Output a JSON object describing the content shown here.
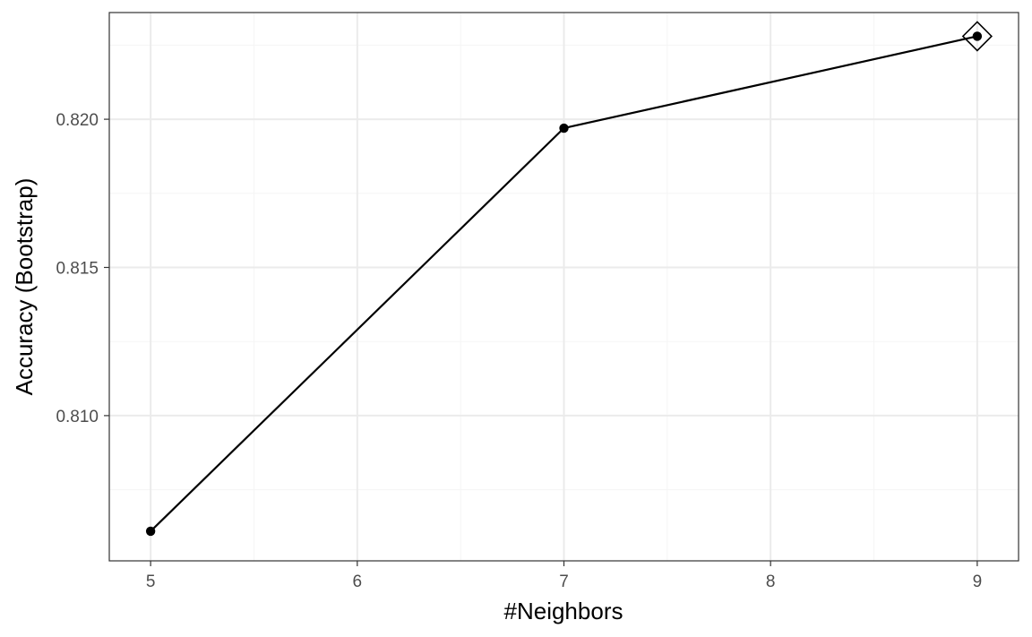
{
  "chart_data": {
    "type": "line",
    "title": "",
    "xlabel": "#Neighbors",
    "ylabel": "Accuracy (Bootstrap)",
    "x": [
      5,
      7,
      9
    ],
    "y": [
      0.8061,
      0.8197,
      0.8228
    ],
    "xlim": [
      4.8,
      9.2
    ],
    "ylim": [
      0.8051,
      0.8236
    ],
    "x_major_ticks": [
      5,
      6,
      7,
      8,
      9
    ],
    "x_minor_ticks": [
      5.5,
      6.5,
      7.5,
      8.5
    ],
    "y_major_ticks": [
      0.81,
      0.815,
      0.82
    ],
    "y_minor_ticks": [
      0.8075,
      0.8125,
      0.8175,
      0.8225
    ],
    "x_tick_labels": [
      "5",
      "6",
      "7",
      "8",
      "9"
    ],
    "y_tick_labels": [
      "0.810",
      "0.815",
      "0.820"
    ],
    "highlight": {
      "x": 9,
      "y": 0.8228,
      "marker": "diamond"
    },
    "grid": true,
    "legend": "none",
    "colors": {
      "line": "#000000",
      "grid_major": "#ebebeb",
      "grid_minor": "#f5f5f5",
      "panel_border": "#333333",
      "tick_text": "#4d4d4d"
    }
  }
}
